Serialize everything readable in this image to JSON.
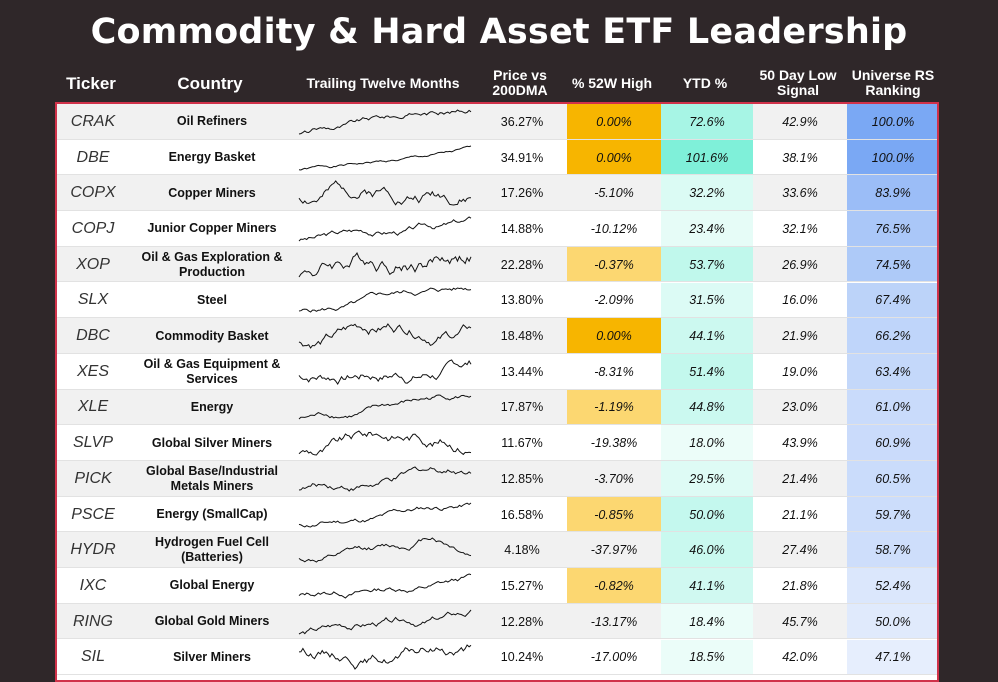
{
  "title": "Commodity & Hard Asset ETF Leadership",
  "headers": {
    "ticker": "Ticker",
    "country": "Country",
    "ttm": "Trailing Twelve Months",
    "price_vs_200dma_1": "Price vs",
    "price_vs_200dma_2": "200DMA",
    "pct_52w_high": "% 52W High",
    "ytd": "YTD %",
    "low_signal_1": "50 Day Low",
    "low_signal_2": "Signal",
    "rs_1": "Universe RS",
    "rs_2": "Ranking"
  },
  "colors": {
    "background": "#2f2729",
    "table_border": "#d0324a",
    "high_full": "#f7b500",
    "high_partial": "#fcd771",
    "ytd_max": "#7ff0d9",
    "rs_max": "#7aa8f4"
  },
  "rows": [
    {
      "ticker": "CRAK",
      "name": "Oil Refiners",
      "price": "36.27%",
      "high": "0.00%",
      "ytd": "72.6%",
      "low": "42.9%",
      "rs": "100.0%",
      "high_v": 0.0,
      "ytd_v": 72.6,
      "rs_v": 100.0
    },
    {
      "ticker": "DBE",
      "name": "Energy Basket",
      "price": "34.91%",
      "high": "0.00%",
      "ytd": "101.6%",
      "low": "38.1%",
      "rs": "100.0%",
      "high_v": 0.0,
      "ytd_v": 101.6,
      "rs_v": 100.0
    },
    {
      "ticker": "COPX",
      "name": "Copper Miners",
      "price": "17.26%",
      "high": "-5.10%",
      "ytd": "32.2%",
      "low": "33.6%",
      "rs": "83.9%",
      "high_v": -5.1,
      "ytd_v": 32.2,
      "rs_v": 83.9
    },
    {
      "ticker": "COPJ",
      "name": "Junior Copper Miners",
      "price": "14.88%",
      "high": "-10.12%",
      "ytd": "23.4%",
      "low": "32.1%",
      "rs": "76.5%",
      "high_v": -10.12,
      "ytd_v": 23.4,
      "rs_v": 76.5
    },
    {
      "ticker": "XOP",
      "name": "Oil & Gas Exploration & Production",
      "price": "22.28%",
      "high": "-0.37%",
      "ytd": "53.7%",
      "low": "26.9%",
      "rs": "74.5%",
      "high_v": -0.37,
      "ytd_v": 53.7,
      "rs_v": 74.5
    },
    {
      "ticker": "SLX",
      "name": "Steel",
      "price": "13.80%",
      "high": "-2.09%",
      "ytd": "31.5%",
      "low": "16.0%",
      "rs": "67.4%",
      "high_v": -2.09,
      "ytd_v": 31.5,
      "rs_v": 67.4
    },
    {
      "ticker": "DBC",
      "name": "Commodity Basket",
      "price": "18.48%",
      "high": "0.00%",
      "ytd": "44.1%",
      "low": "21.9%",
      "rs": "66.2%",
      "high_v": 0.0,
      "ytd_v": 44.1,
      "rs_v": 66.2
    },
    {
      "ticker": "XES",
      "name": "Oil & Gas Equipment & Services",
      "price": "13.44%",
      "high": "-8.31%",
      "ytd": "51.4%",
      "low": "19.0%",
      "rs": "63.4%",
      "high_v": -8.31,
      "ytd_v": 51.4,
      "rs_v": 63.4
    },
    {
      "ticker": "XLE",
      "name": "Energy",
      "price": "17.87%",
      "high": "-1.19%",
      "ytd": "44.8%",
      "low": "23.0%",
      "rs": "61.0%",
      "high_v": -1.19,
      "ytd_v": 44.8,
      "rs_v": 61.0
    },
    {
      "ticker": "SLVP",
      "name": "Global Silver Miners",
      "price": "11.67%",
      "high": "-19.38%",
      "ytd": "18.0%",
      "low": "43.9%",
      "rs": "60.9%",
      "high_v": -19.38,
      "ytd_v": 18.0,
      "rs_v": 60.9
    },
    {
      "ticker": "PICK",
      "name": "Global Base/Industrial Metals Miners",
      "price": "12.85%",
      "high": "-3.70%",
      "ytd": "29.5%",
      "low": "21.4%",
      "rs": "60.5%",
      "high_v": -3.7,
      "ytd_v": 29.5,
      "rs_v": 60.5
    },
    {
      "ticker": "PSCE",
      "name": "Energy (SmallCap)",
      "price": "16.58%",
      "high": "-0.85%",
      "ytd": "50.0%",
      "low": "21.1%",
      "rs": "59.7%",
      "high_v": -0.85,
      "ytd_v": 50.0,
      "rs_v": 59.7
    },
    {
      "ticker": "HYDR",
      "name": "Hydrogen Fuel Cell (Batteries)",
      "price": "4.18%",
      "high": "-37.97%",
      "ytd": "46.0%",
      "low": "27.4%",
      "rs": "58.7%",
      "high_v": -37.97,
      "ytd_v": 46.0,
      "rs_v": 58.7
    },
    {
      "ticker": "IXC",
      "name": "Global Energy",
      "price": "15.27%",
      "high": "-0.82%",
      "ytd": "41.1%",
      "low": "21.8%",
      "rs": "52.4%",
      "high_v": -0.82,
      "ytd_v": 41.1,
      "rs_v": 52.4
    },
    {
      "ticker": "RING",
      "name": "Global Gold Miners",
      "price": "12.28%",
      "high": "-13.17%",
      "ytd": "18.4%",
      "low": "45.7%",
      "rs": "50.0%",
      "high_v": -13.17,
      "ytd_v": 18.4,
      "rs_v": 50.0
    },
    {
      "ticker": "SIL",
      "name": "Silver Miners",
      "price": "10.24%",
      "high": "-17.00%",
      "ytd": "18.5%",
      "low": "42.0%",
      "rs": "47.1%",
      "high_v": -17.0,
      "ytd_v": 18.5,
      "rs_v": 47.1
    }
  ]
}
